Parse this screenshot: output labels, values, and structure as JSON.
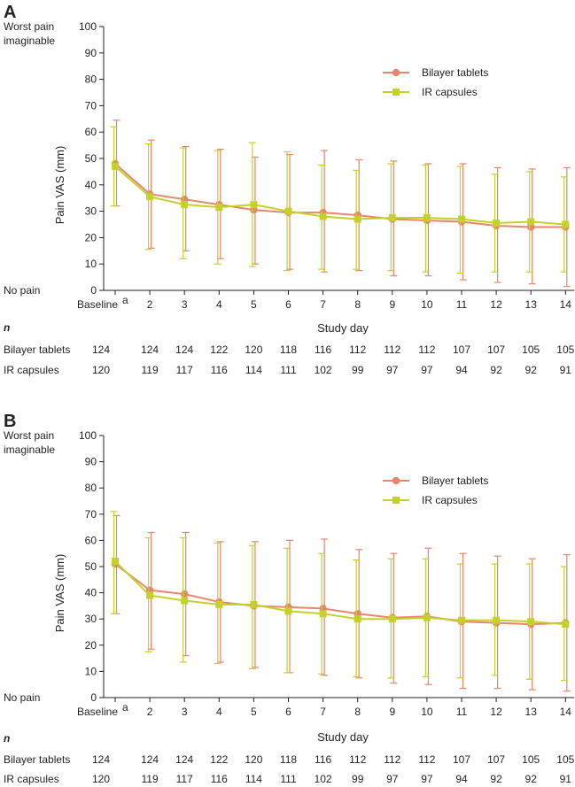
{
  "colors": {
    "bilayer": "#e8866a",
    "ir": "#c4d12a",
    "axis": "#231f20"
  },
  "chart_data": [
    {
      "type": "line",
      "panel": "A",
      "ylabel": "Pain VAS (mm)",
      "xlabel": "Study day",
      "ylim": [
        0,
        100
      ],
      "yticks": [
        0,
        10,
        20,
        30,
        40,
        50,
        60,
        70,
        80,
        90,
        100
      ],
      "top_label": [
        "Worst pain",
        "imaginable"
      ],
      "bottom_label": "No pain",
      "categories": [
        "Baseline",
        "2",
        "3",
        "4",
        "5",
        "6",
        "7",
        "8",
        "9",
        "10",
        "11",
        "12",
        "13",
        "14"
      ],
      "baseline_superscript": "a",
      "legend_position": "top-right",
      "series": [
        {
          "name": "Bilayer tablets",
          "marker": "circle",
          "values": [
            48,
            36.5,
            34.5,
            32.5,
            30.5,
            29.5,
            29.5,
            28.5,
            27,
            26.5,
            26,
            24.5,
            24,
            24
          ],
          "upper": [
            64.5,
            57,
            54.5,
            53.5,
            50.5,
            51.5,
            53,
            49.5,
            49,
            48,
            48,
            46.5,
            46,
            46.5
          ],
          "lower": [
            32,
            16,
            15,
            12,
            10,
            8,
            7,
            7.5,
            5.5,
            5.5,
            4,
            3,
            2.5,
            1.5
          ]
        },
        {
          "name": "IR capsules",
          "marker": "square",
          "values": [
            47,
            35.5,
            32.5,
            31.5,
            32.5,
            30,
            28,
            27,
            27.5,
            27.5,
            27,
            25.5,
            26,
            25
          ],
          "upper": [
            62,
            55.5,
            54,
            53,
            56,
            52.5,
            47.5,
            45.5,
            48,
            47.5,
            47,
            44,
            45,
            43
          ],
          "lower": [
            32,
            15.5,
            12,
            10,
            9,
            7.5,
            8,
            8,
            7.5,
            7,
            6.5,
            7,
            7,
            7
          ]
        }
      ],
      "n_label": "n",
      "n_rows": [
        {
          "label": "Bilayer tablets",
          "values": [
            "124",
            "124",
            "124",
            "122",
            "120",
            "118",
            "116",
            "112",
            "112",
            "112",
            "107",
            "107",
            "105",
            "105"
          ]
        },
        {
          "label": "IR capsules",
          "values": [
            "120",
            "119",
            "117",
            "116",
            "114",
            "111",
            "102",
            "99",
            "97",
            "97",
            "94",
            "92",
            "92",
            "91"
          ]
        }
      ]
    },
    {
      "type": "line",
      "panel": "B",
      "ylabel": "Pain VAS (mm)",
      "xlabel": "Study day",
      "ylim": [
        0,
        100
      ],
      "yticks": [
        0,
        10,
        20,
        30,
        40,
        50,
        60,
        70,
        80,
        90,
        100
      ],
      "top_label": [
        "Worst pain",
        "imaginable"
      ],
      "bottom_label": "No pain",
      "categories": [
        "Baseline",
        "2",
        "3",
        "4",
        "5",
        "6",
        "7",
        "8",
        "9",
        "10",
        "11",
        "12",
        "13",
        "14"
      ],
      "baseline_superscript": "a",
      "legend_position": "top-right",
      "series": [
        {
          "name": "Bilayer tablets",
          "marker": "circle",
          "values": [
            51,
            41,
            39.5,
            36.5,
            35,
            34.5,
            34,
            32,
            30.5,
            31,
            29,
            28.5,
            28,
            28.5
          ],
          "upper": [
            69.5,
            63,
            63,
            59.5,
            59.5,
            60,
            60.5,
            56.5,
            55,
            57,
            55,
            54,
            53,
            54.5
          ],
          "lower": [
            32,
            18.5,
            16,
            13.5,
            11.5,
            9.5,
            8.5,
            7.5,
            5.5,
            5,
            3.5,
            3.5,
            3,
            2.5
          ]
        },
        {
          "name": "IR capsules",
          "marker": "square",
          "values": [
            52,
            39,
            37,
            35.5,
            35.5,
            33,
            32,
            30,
            30,
            30.5,
            29.5,
            29.5,
            29,
            28
          ],
          "upper": [
            71,
            61,
            61,
            59,
            58,
            57,
            55,
            52.5,
            53,
            53,
            51,
            51,
            51,
            50
          ],
          "lower": [
            32,
            17.5,
            13.5,
            13,
            11,
            9.5,
            9,
            8,
            7.5,
            8,
            7.5,
            8.5,
            7,
            6.5
          ]
        }
      ],
      "n_label": "n",
      "n_rows": [
        {
          "label": "Bilayer tablets",
          "values": [
            "124",
            "124",
            "124",
            "122",
            "120",
            "118",
            "116",
            "112",
            "112",
            "112",
            "107",
            "107",
            "105",
            "105"
          ]
        },
        {
          "label": "IR capsules",
          "values": [
            "120",
            "119",
            "117",
            "116",
            "114",
            "111",
            "102",
            "99",
            "97",
            "97",
            "94",
            "92",
            "92",
            "91"
          ]
        }
      ]
    }
  ]
}
